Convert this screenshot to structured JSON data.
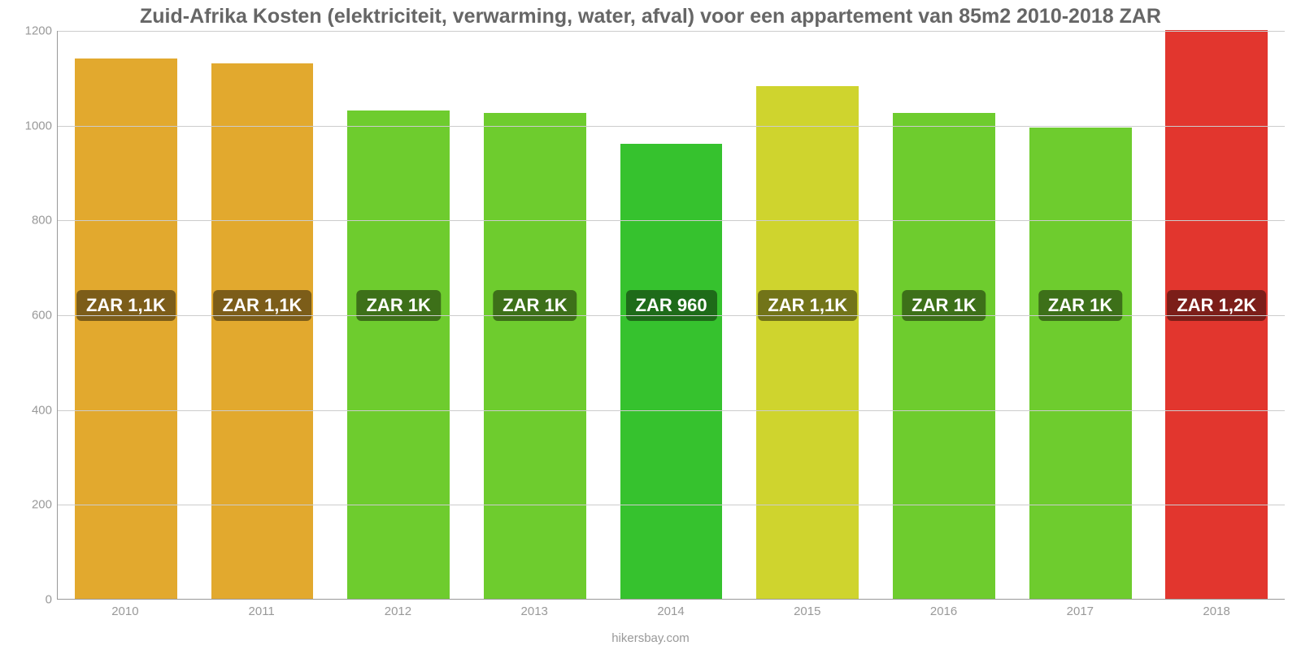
{
  "chart": {
    "type": "bar",
    "title": "Zuid-Afrika Kosten (elektriciteit, verwarming, water, afval) voor een appartement van 85m2 2010-2018 ZAR",
    "title_fontsize": 25,
    "title_color": "#666666",
    "attribution": "hikersbay.com",
    "attribution_color": "#999999",
    "background_color": "#ffffff",
    "axis_color": "#999999",
    "grid_color": "#cccccc",
    "tick_color": "#999999",
    "ylim_min": 0,
    "ylim_max": 1200,
    "ytick_step": 200,
    "yticks": [
      "0",
      "200",
      "400",
      "600",
      "800",
      "1000",
      "1200"
    ],
    "bar_width_ratio": 0.75,
    "categories": [
      "2010",
      "2011",
      "2012",
      "2013",
      "2014",
      "2015",
      "2016",
      "2017",
      "2018"
    ],
    "values": [
      1140,
      1130,
      1030,
      1025,
      960,
      1082,
      1025,
      995,
      1200
    ],
    "bar_colors": [
      "#e2a92e",
      "#e2a92e",
      "#6ecc2e",
      "#6ecc2e",
      "#36c22e",
      "#cfd42e",
      "#6ecc2e",
      "#6ecc2e",
      "#e2362e"
    ],
    "value_labels": [
      "ZAR 1,1K",
      "ZAR 1,1K",
      "ZAR 1K",
      "ZAR 1K",
      "ZAR 960",
      "ZAR 1,1K",
      "ZAR 1K",
      "ZAR 1K",
      "ZAR 1,2K"
    ],
    "badge_bg_colors": [
      "#7c5d19",
      "#7c5d19",
      "#3d7019",
      "#3d7019",
      "#1e6b19",
      "#727419",
      "#3d7019",
      "#3d7019",
      "#7c1e19"
    ],
    "badge_fontsize": 22,
    "badge_y_value": 620
  }
}
